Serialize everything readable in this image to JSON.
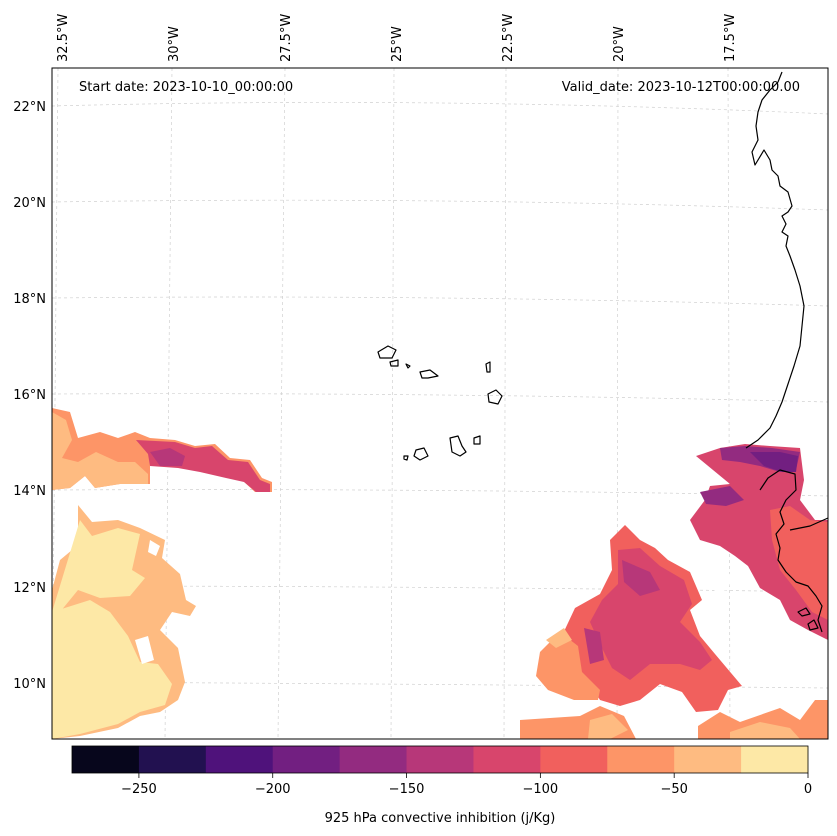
{
  "map": {
    "title_left": "Start date: 2023-10-10_00:00:00",
    "title_right": "Valid_date: 2023-10-12T00:00:00.00",
    "lon_labels": [
      "32.5°W",
      "30°W",
      "27.5°W",
      "25°W",
      "22.5°W",
      "20°W",
      "17.5°W"
    ],
    "lat_labels": [
      "22°N",
      "20°N",
      "18°N",
      "16°N",
      "14°N",
      "12°N",
      "10°N"
    ],
    "features": [
      "Cape Verde islands",
      "West African coastline"
    ]
  },
  "colorbar": {
    "label": "925 hPa convective inhibition (j/Kg)",
    "ticks": [
      "−250",
      "−200",
      "−150",
      "−100",
      "−50",
      "0"
    ],
    "levels": [
      -275,
      -250,
      -225,
      -200,
      -175,
      -150,
      -125,
      -100,
      -75,
      -50,
      -25,
      0
    ],
    "colors": [
      "#07061c",
      "#221150",
      "#4f127b",
      "#721f81",
      "#932b80",
      "#b73779",
      "#d8456c",
      "#f1605d",
      "#fd9567",
      "#febb81",
      "#fde8a6"
    ]
  }
}
